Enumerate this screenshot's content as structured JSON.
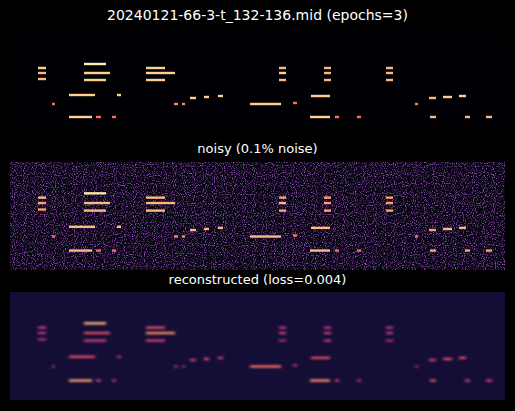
{
  "chart_data": [
    {
      "type": "heatmap",
      "title": "20240121-66-3-t_132-136.mid (epochs=3)",
      "tick_labels": false,
      "xlim": [
        0,
        495
      ],
      "ylim": [
        0,
        100
      ],
      "background_value": 0.0,
      "color_range": [
        0,
        1
      ],
      "notes": [
        [
          28,
          36,
          33,
          0.9
        ],
        [
          28,
          36,
          38,
          0.85
        ],
        [
          28,
          36,
          44,
          0.85
        ],
        [
          74,
          96,
          29,
          0.97
        ],
        [
          74,
          100,
          38,
          0.9
        ],
        [
          74,
          96,
          45,
          0.9
        ],
        [
          136,
          155,
          33,
          0.9
        ],
        [
          136,
          165,
          38,
          0.9
        ],
        [
          136,
          155,
          45,
          0.9
        ],
        [
          269,
          276,
          33,
          0.85
        ],
        [
          269,
          276,
          38,
          0.9
        ],
        [
          269,
          276,
          45,
          0.85
        ],
        [
          314,
          321,
          33,
          0.85
        ],
        [
          314,
          321,
          38,
          0.85
        ],
        [
          314,
          321,
          45,
          0.85
        ],
        [
          376,
          383,
          33,
          0.85
        ],
        [
          376,
          383,
          38,
          0.85
        ],
        [
          376,
          383,
          45,
          0.85
        ],
        [
          42,
          45,
          69,
          0.7
        ],
        [
          59,
          85,
          60,
          0.9
        ],
        [
          107,
          111,
          60,
          0.9
        ],
        [
          59,
          82,
          82,
          0.9
        ],
        [
          86,
          91,
          82,
          0.7
        ],
        [
          102,
          106,
          82,
          0.7
        ],
        [
          164,
          168,
          69,
          0.75
        ],
        [
          172,
          175,
          69,
          0.75
        ],
        [
          180,
          186,
          63,
          0.9
        ],
        [
          194,
          199,
          62,
          0.9
        ],
        [
          208,
          213,
          61,
          0.9
        ],
        [
          240,
          271,
          69,
          0.9
        ],
        [
          283,
          287,
          68,
          0.7
        ],
        [
          301,
          320,
          61,
          0.9
        ],
        [
          300,
          320,
          82,
          0.9
        ],
        [
          325,
          329,
          82,
          0.7
        ],
        [
          347,
          351,
          82,
          0.7
        ],
        [
          405,
          408,
          69,
          0.7
        ],
        [
          419,
          426,
          63,
          0.85
        ],
        [
          433,
          442,
          62,
          0.9
        ],
        [
          449,
          456,
          61,
          0.9
        ],
        [
          420,
          426,
          82,
          0.85
        ],
        [
          455,
          460,
          82,
          0.85
        ],
        [
          476,
          482,
          82,
          0.85
        ]
      ]
    },
    {
      "type": "heatmap",
      "title": "noisy (0.1% noise)",
      "tick_labels": false,
      "xlim": [
        0,
        495
      ],
      "ylim": [
        0,
        100
      ],
      "background_value": 0.03,
      "color_range": [
        0,
        1
      ],
      "notes": [
        [
          28,
          36,
          33,
          0.85
        ],
        [
          28,
          36,
          38,
          0.8
        ],
        [
          28,
          36,
          44,
          0.8
        ],
        [
          74,
          96,
          29,
          0.95
        ],
        [
          74,
          100,
          38,
          0.85
        ],
        [
          74,
          96,
          45,
          0.85
        ],
        [
          136,
          155,
          33,
          0.85
        ],
        [
          136,
          165,
          38,
          0.85
        ],
        [
          136,
          155,
          45,
          0.85
        ],
        [
          269,
          276,
          33,
          0.8
        ],
        [
          269,
          276,
          38,
          0.85
        ],
        [
          269,
          276,
          45,
          0.8
        ],
        [
          314,
          321,
          33,
          0.8
        ],
        [
          314,
          321,
          38,
          0.8
        ],
        [
          314,
          321,
          45,
          0.8
        ],
        [
          376,
          383,
          33,
          0.8
        ],
        [
          376,
          383,
          38,
          0.8
        ],
        [
          376,
          383,
          45,
          0.8
        ],
        [
          42,
          45,
          69,
          0.7
        ],
        [
          59,
          85,
          60,
          0.85
        ],
        [
          107,
          111,
          60,
          0.85
        ],
        [
          59,
          82,
          82,
          0.85
        ],
        [
          86,
          91,
          82,
          0.7
        ],
        [
          102,
          106,
          82,
          0.7
        ],
        [
          164,
          168,
          69,
          0.75
        ],
        [
          172,
          175,
          69,
          0.75
        ],
        [
          180,
          186,
          63,
          0.85
        ],
        [
          194,
          199,
          62,
          0.85
        ],
        [
          208,
          213,
          61,
          0.85
        ],
        [
          240,
          271,
          69,
          0.85
        ],
        [
          283,
          287,
          68,
          0.7
        ],
        [
          301,
          320,
          61,
          0.85
        ],
        [
          300,
          320,
          82,
          0.85
        ],
        [
          325,
          329,
          82,
          0.7
        ],
        [
          347,
          351,
          82,
          0.7
        ],
        [
          405,
          408,
          69,
          0.7
        ],
        [
          419,
          426,
          63,
          0.8
        ],
        [
          433,
          442,
          62,
          0.85
        ],
        [
          449,
          456,
          61,
          0.85
        ],
        [
          420,
          426,
          82,
          0.8
        ],
        [
          455,
          460,
          82,
          0.8
        ],
        [
          476,
          482,
          82,
          0.8
        ]
      ]
    },
    {
      "type": "heatmap",
      "title": "reconstructed (loss=0.004)",
      "tick_labels": false,
      "xlim": [
        0,
        495
      ],
      "ylim": [
        0,
        100
      ],
      "background_value": 0.1,
      "color_range": [
        0,
        1
      ],
      "notes": [
        [
          28,
          36,
          33,
          0.55
        ],
        [
          28,
          36,
          38,
          0.5
        ],
        [
          28,
          36,
          44,
          0.45
        ],
        [
          74,
          96,
          29,
          0.85
        ],
        [
          74,
          100,
          38,
          0.6
        ],
        [
          74,
          96,
          45,
          0.55
        ],
        [
          136,
          155,
          33,
          0.6
        ],
        [
          136,
          165,
          38,
          0.75
        ],
        [
          136,
          155,
          45,
          0.55
        ],
        [
          269,
          276,
          33,
          0.5
        ],
        [
          269,
          276,
          38,
          0.55
        ],
        [
          269,
          276,
          45,
          0.45
        ],
        [
          314,
          321,
          33,
          0.5
        ],
        [
          314,
          321,
          38,
          0.55
        ],
        [
          314,
          321,
          45,
          0.5
        ],
        [
          376,
          383,
          33,
          0.5
        ],
        [
          376,
          383,
          38,
          0.5
        ],
        [
          376,
          383,
          45,
          0.45
        ],
        [
          42,
          45,
          69,
          0.45
        ],
        [
          59,
          85,
          60,
          0.6
        ],
        [
          107,
          111,
          60,
          0.5
        ],
        [
          59,
          82,
          82,
          0.8
        ],
        [
          86,
          91,
          82,
          0.55
        ],
        [
          102,
          106,
          82,
          0.5
        ],
        [
          164,
          168,
          69,
          0.45
        ],
        [
          172,
          175,
          69,
          0.45
        ],
        [
          180,
          186,
          63,
          0.55
        ],
        [
          194,
          199,
          62,
          0.6
        ],
        [
          208,
          213,
          61,
          0.55
        ],
        [
          240,
          271,
          69,
          0.7
        ],
        [
          283,
          287,
          68,
          0.5
        ],
        [
          301,
          320,
          61,
          0.6
        ],
        [
          300,
          320,
          82,
          0.75
        ],
        [
          325,
          329,
          82,
          0.55
        ],
        [
          347,
          351,
          82,
          0.5
        ],
        [
          405,
          408,
          69,
          0.45
        ],
        [
          419,
          426,
          63,
          0.55
        ],
        [
          433,
          442,
          62,
          0.6
        ],
        [
          449,
          456,
          61,
          0.6
        ],
        [
          420,
          426,
          82,
          0.6
        ],
        [
          455,
          460,
          82,
          0.55
        ],
        [
          476,
          482,
          82,
          0.55
        ]
      ]
    }
  ]
}
